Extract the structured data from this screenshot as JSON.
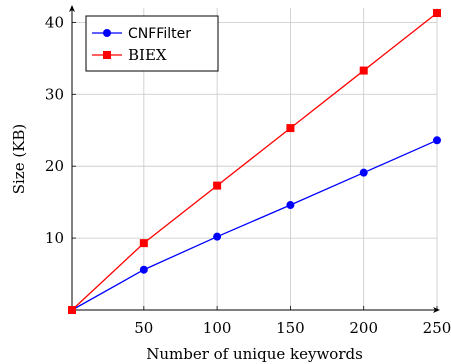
{
  "chart_data": {
    "type": "line",
    "xlabel": "Number of unique keywords",
    "ylabel": "Size (KB)",
    "x": [
      1,
      50,
      100,
      150,
      200,
      250
    ],
    "xlim": [
      1,
      250
    ],
    "ylim": [
      0,
      42
    ],
    "xticks": [
      50,
      100,
      150,
      200,
      250
    ],
    "yticks": [
      10,
      20,
      30,
      40
    ],
    "grid": true,
    "legend_position": "top-left",
    "series": [
      {
        "name": "CNFFilter",
        "color": "#0000ff",
        "marker": "circle",
        "values": [
          0,
          5.6,
          10.2,
          14.6,
          19.1,
          23.6
        ]
      },
      {
        "name": "BIEX",
        "color": "#ff0000",
        "marker": "square",
        "values": [
          0,
          9.3,
          17.3,
          25.3,
          33.3,
          41.3
        ]
      }
    ]
  }
}
